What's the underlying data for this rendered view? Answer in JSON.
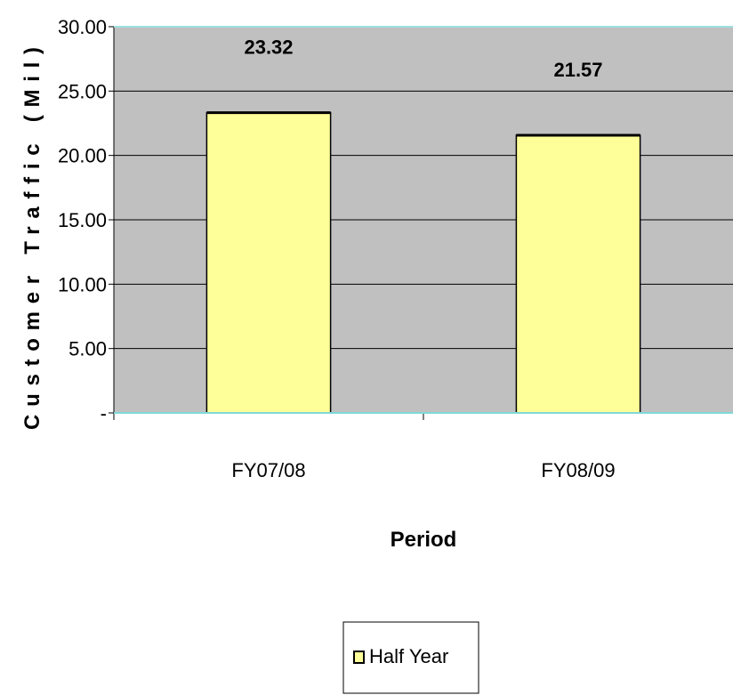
{
  "chart_data": {
    "type": "bar",
    "categories": [
      "FY07/08",
      "FY08/09"
    ],
    "series": [
      {
        "name": "Half Year",
        "values": [
          23.32,
          21.57
        ]
      }
    ],
    "data_labels": [
      "23.32",
      "21.57"
    ],
    "title": "",
    "xlabel": "Period",
    "ylabel": "Customer Traffic (Mil)",
    "ylim": [
      0,
      30
    ],
    "ytick_labels": [
      "-",
      "5.00",
      "10.00",
      "15.00",
      "20.00",
      "25.00",
      "30.00"
    ],
    "grid": true,
    "legend_position": "bottom-center",
    "colors": {
      "plot_background": "#c0c0c0",
      "bar_fill": "#ffff99",
      "bar_stroke": "#000000",
      "gridline": "#000000",
      "axis_top_border": "#9fe0e0",
      "axis_bottom_line": "#80d8d8"
    }
  }
}
